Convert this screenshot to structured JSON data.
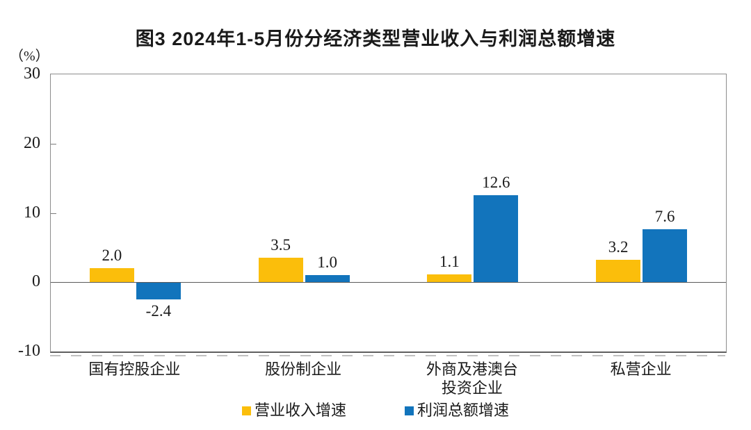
{
  "chart_data": {
    "type": "bar",
    "title": "图3  2024年1-5月份分经济类型营业收入与利润总额增速",
    "unit_label": "（%）",
    "categories": [
      "国有控股企业",
      "股份制企业",
      "外商及港澳台\n投资企业",
      "私营企业"
    ],
    "series": [
      {
        "name": "营业收入增速",
        "color": "#FBBE0B",
        "values": [
          2.0,
          3.5,
          1.1,
          3.2
        ],
        "labels": [
          "2.0",
          "3.5",
          "1.1",
          "3.2"
        ]
      },
      {
        "name": "利润总额增速",
        "color": "#1274BC",
        "values": [
          -2.4,
          1.0,
          12.6,
          7.6
        ],
        "labels": [
          "-2.4",
          "1.0",
          "12.6",
          "7.6"
        ]
      }
    ],
    "ylim": [
      -10,
      30
    ],
    "yticks": [
      30,
      20,
      10,
      0,
      -10
    ],
    "grid": false,
    "legend_position": "bottom"
  },
  "colors": {
    "background": "#FFFFFF",
    "axis_border": "#8C8C8C",
    "zero_line": "#595959",
    "text": "#1A1A1A"
  }
}
